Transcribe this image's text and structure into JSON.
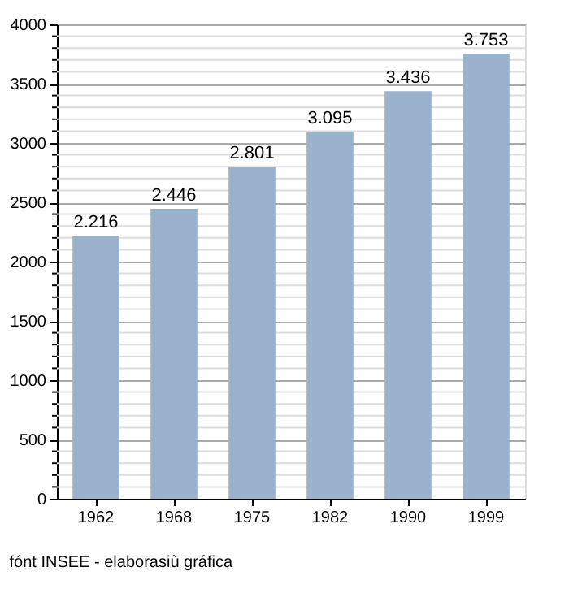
{
  "chart_data": {
    "type": "bar",
    "categories": [
      "1962",
      "1968",
      "1975",
      "1982",
      "1990",
      "1999"
    ],
    "values": [
      2216,
      2446,
      2801,
      3095,
      3436,
      3753
    ],
    "value_labels": [
      "2.216",
      "2.446",
      "2.801",
      "3.095",
      "3.436",
      "3.753"
    ],
    "color": "#9ab2cb",
    "ylim": [
      0,
      4000
    ],
    "yticks": [
      0,
      {
        "value": 100,
        "label": null
      },
      {
        "value": 200,
        "label": null
      },
      {
        "value": 300,
        "label": null
      },
      {
        "value": 400,
        "label": null
      },
      500,
      {
        "value": 600,
        "label": null
      },
      {
        "value": 700,
        "label": null
      },
      {
        "value": 800,
        "label": null
      },
      {
        "value": 900,
        "label": null
      },
      1000,
      {
        "value": 1100,
        "label": null
      },
      {
        "value": 1200,
        "label": null
      },
      {
        "value": 1300,
        "label": null
      },
      {
        "value": 1400,
        "label": null
      },
      1500,
      {
        "value": 1600,
        "label": null
      },
      {
        "value": 1700,
        "label": null
      },
      {
        "value": 1800,
        "label": null
      },
      {
        "value": 1900,
        "label": null
      },
      2000,
      {
        "value": 2100,
        "label": null
      },
      {
        "value": 2200,
        "label": null
      },
      {
        "value": 2300,
        "label": null
      },
      {
        "value": 2400,
        "label": null
      },
      2500,
      {
        "value": 2600,
        "label": null
      },
      {
        "value": 2700,
        "label": null
      },
      {
        "value": 2800,
        "label": null
      },
      {
        "value": 2900,
        "label": null
      },
      3000,
      {
        "value": 3100,
        "label": null
      },
      {
        "value": 3200,
        "label": null
      },
      {
        "value": 3300,
        "label": null
      },
      {
        "value": 3400,
        "label": null
      },
      3500,
      {
        "value": 3600,
        "label": null
      },
      {
        "value": 3700,
        "label": null
      },
      {
        "value": 3800,
        "label": null
      },
      {
        "value": 3900,
        "label": null
      },
      4000
    ],
    "grid": "y",
    "annotations": [
      "fónt INSEE - elaborasiù gráfica"
    ]
  }
}
